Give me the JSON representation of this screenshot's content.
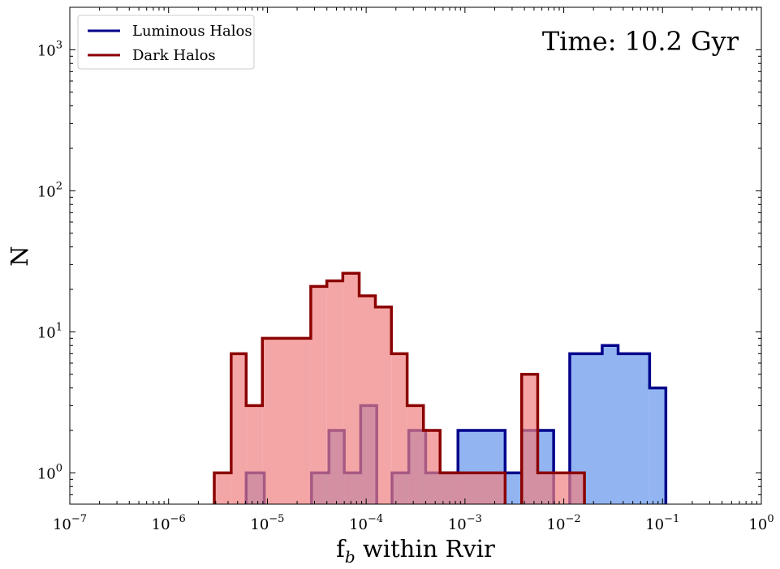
{
  "chart_data": {
    "type": "histogram",
    "xscale": "log",
    "yscale": "log",
    "xlim": [
      1e-07,
      1
    ],
    "ylim": [
      0.6,
      2000
    ],
    "xlabel_main": "f",
    "xlabel_sub": "b",
    "xlabel_rest": " within Rvir",
    "ylabel": "N",
    "annotation": "Time: 10.2 Gyr",
    "legend_position": "top-left",
    "x_ticks": [
      {
        "value": 1e-07,
        "exp": "−7"
      },
      {
        "value": 1e-06,
        "exp": "−6"
      },
      {
        "value": 1e-05,
        "exp": "−5"
      },
      {
        "value": 0.0001,
        "exp": "−4"
      },
      {
        "value": 0.001,
        "exp": "−3"
      },
      {
        "value": 0.01,
        "exp": "−2"
      },
      {
        "value": 0.1,
        "exp": "−1"
      },
      {
        "value": 1,
        "exp": "0"
      }
    ],
    "y_ticks": [
      {
        "value": 1,
        "exp": "0"
      },
      {
        "value": 10,
        "exp": "1"
      },
      {
        "value": 100,
        "exp": "2"
      },
      {
        "value": 1000,
        "exp": "3"
      }
    ],
    "series": [
      {
        "name": "Luminous Halos",
        "line_color": "#00008b",
        "fill_color": "#6495ed",
        "fill_opacity": 0.7,
        "bins": [
          {
            "x0": 6.1e-06,
            "x1": 9.3e-06,
            "count": 1
          },
          {
            "x0": 2.8e-05,
            "x1": 4.2e-05,
            "count": 1
          },
          {
            "x0": 4.2e-05,
            "x1": 6e-05,
            "count": 2
          },
          {
            "x0": 6e-05,
            "x1": 8.8e-05,
            "count": 1
          },
          {
            "x0": 8.8e-05,
            "x1": 0.000128,
            "count": 3
          },
          {
            "x0": 0.000183,
            "x1": 0.00027,
            "count": 1
          },
          {
            "x0": 0.00027,
            "x1": 0.0004,
            "count": 2
          },
          {
            "x0": 0.0004,
            "x1": 0.00085,
            "count": 1
          },
          {
            "x0": 0.00085,
            "x1": 0.00255,
            "count": 2
          },
          {
            "x0": 0.00255,
            "x1": 0.00375,
            "count": 1
          },
          {
            "x0": 0.00375,
            "x1": 0.0079,
            "count": 2
          },
          {
            "x0": 0.0115,
            "x1": 0.0245,
            "count": 7
          },
          {
            "x0": 0.0245,
            "x1": 0.0355,
            "count": 8
          },
          {
            "x0": 0.0355,
            "x1": 0.074,
            "count": 7
          },
          {
            "x0": 0.074,
            "x1": 0.108,
            "count": 4
          }
        ]
      },
      {
        "name": "Dark Halos",
        "line_color": "#8b0000",
        "fill_color": "#f08080",
        "fill_opacity": 0.7,
        "bins": [
          {
            "x0": 2.9e-06,
            "x1": 4.3e-06,
            "count": 1
          },
          {
            "x0": 4.3e-06,
            "x1": 6.1e-06,
            "count": 7
          },
          {
            "x0": 6.1e-06,
            "x1": 8.9e-06,
            "count": 3
          },
          {
            "x0": 8.9e-06,
            "x1": 2.75e-05,
            "count": 9
          },
          {
            "x0": 2.75e-05,
            "x1": 4e-05,
            "count": 21
          },
          {
            "x0": 4e-05,
            "x1": 5.8e-05,
            "count": 23
          },
          {
            "x0": 5.8e-05,
            "x1": 8.5e-05,
            "count": 26
          },
          {
            "x0": 8.5e-05,
            "x1": 0.000124,
            "count": 18
          },
          {
            "x0": 0.000124,
            "x1": 0.00018,
            "count": 15
          },
          {
            "x0": 0.00018,
            "x1": 0.00026,
            "count": 7
          },
          {
            "x0": 0.00026,
            "x1": 0.00038,
            "count": 3
          },
          {
            "x0": 0.00038,
            "x1": 0.00056,
            "count": 2
          },
          {
            "x0": 0.00056,
            "x1": 0.00255,
            "count": 1
          },
          {
            "x0": 0.00375,
            "x1": 0.00545,
            "count": 5
          },
          {
            "x0": 0.00545,
            "x1": 0.0162,
            "count": 1
          }
        ]
      }
    ]
  }
}
